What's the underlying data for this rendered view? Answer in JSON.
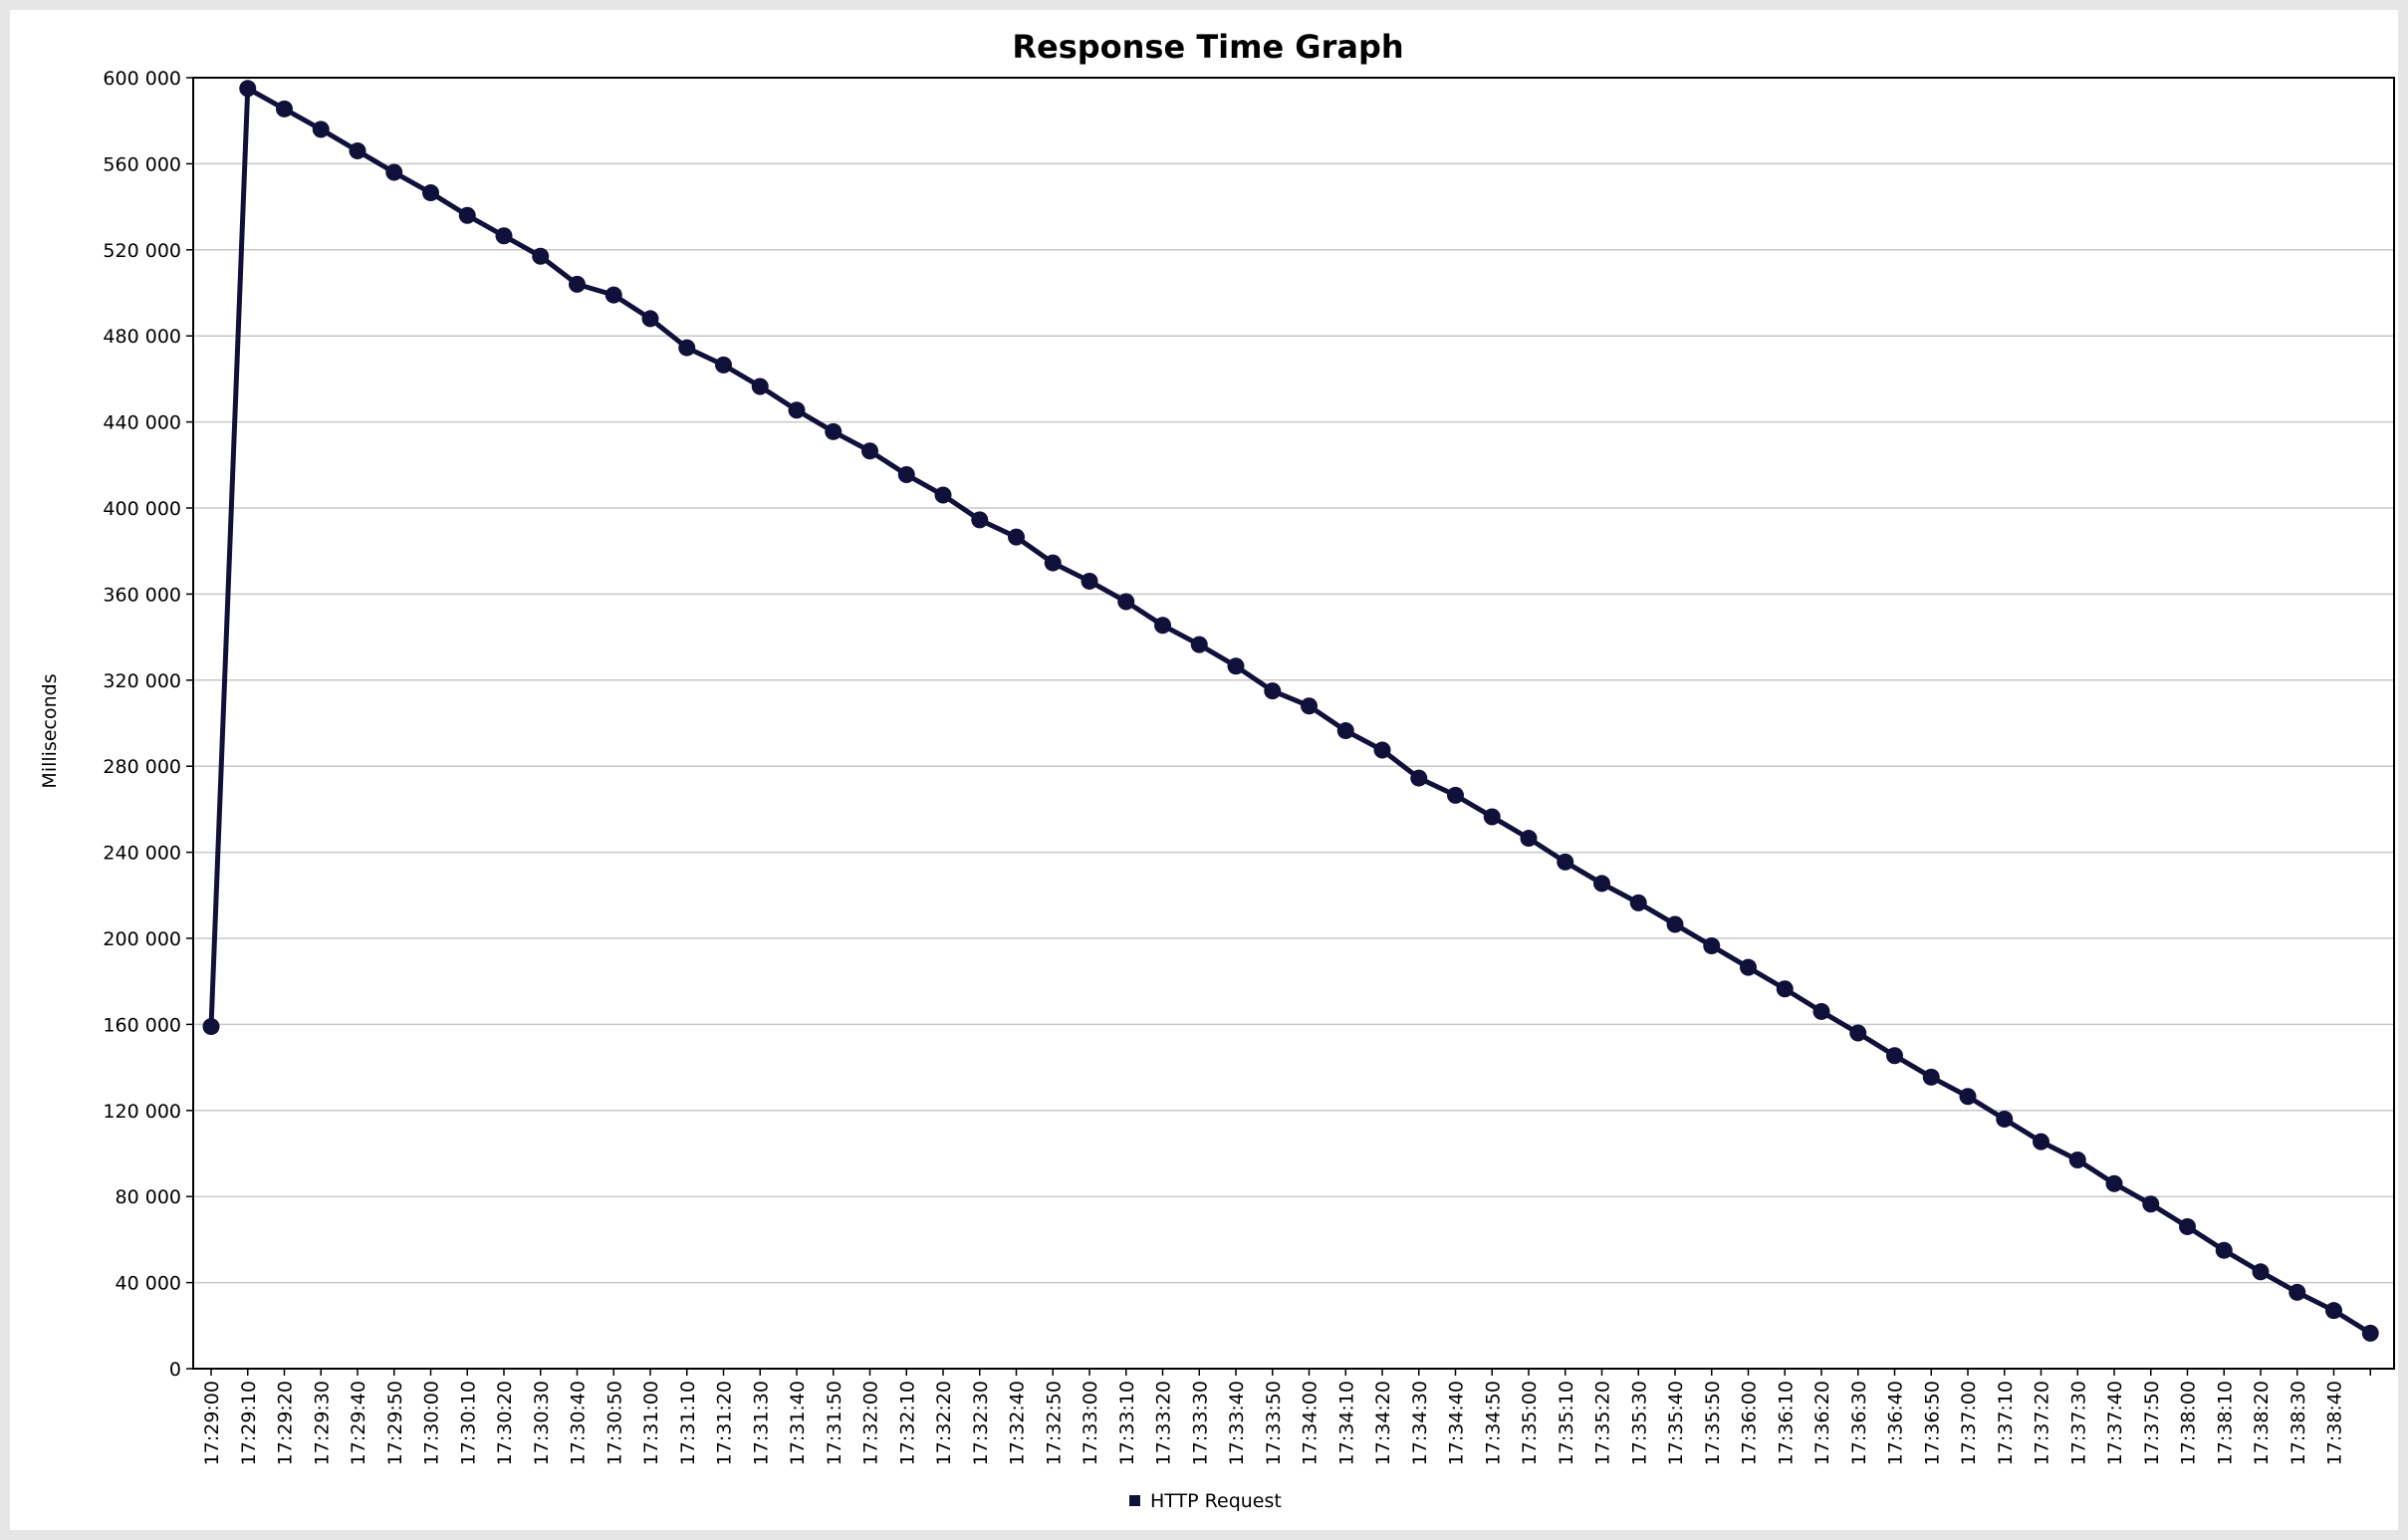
{
  "chart_data": {
    "type": "line",
    "title": "Response Time Graph",
    "xlabel": "",
    "ylabel": "Milliseconds",
    "ylim": [
      0,
      600000
    ],
    "y_ticks": [
      0,
      40000,
      80000,
      120000,
      160000,
      200000,
      240000,
      280000,
      320000,
      360000,
      400000,
      440000,
      480000,
      520000,
      560000,
      600000
    ],
    "y_tick_labels": [
      "0",
      "40 000",
      "80 000",
      "120 000",
      "160 000",
      "200 000",
      "240 000",
      "280 000",
      "320 000",
      "360 000",
      "400 000",
      "440 000",
      "480 000",
      "520 000",
      "560 000",
      "600 000"
    ],
    "x_tick_labels": [
      "17:29:00",
      "17:29:10",
      "17:29:20",
      "17:29:30",
      "17:29:40",
      "17:29:50",
      "17:30:00",
      "17:30:10",
      "17:30:20",
      "17:30:30",
      "17:30:40",
      "17:30:50",
      "17:31:00",
      "17:31:10",
      "17:31:20",
      "17:31:30",
      "17:31:40",
      "17:31:50",
      "17:32:00",
      "17:32:10",
      "17:32:20",
      "17:32:30",
      "17:32:40",
      "17:32:50",
      "17:33:00",
      "17:33:10",
      "17:33:20",
      "17:33:30",
      "17:33:40",
      "17:33:50",
      "17:34:00",
      "17:34:10",
      "17:34:20",
      "17:34:30",
      "17:34:40",
      "17:34:50",
      "17:35:00",
      "17:35:10",
      "17:35:20",
      "17:35:30",
      "17:35:40",
      "17:35:50",
      "17:36:00",
      "17:36:10",
      "17:36:20",
      "17:36:30",
      "17:36:40",
      "17:36:50",
      "17:37:00",
      "17:37:10",
      "17:37:20",
      "17:37:30",
      "17:37:40",
      "17:37:50",
      "17:38:00",
      "17:38:10",
      "17:38:20",
      "17:38:30",
      "17:38:40"
    ],
    "grid": true,
    "legend_position": "bottom-center",
    "series": [
      {
        "name": "HTTP Request",
        "color": "#10103a",
        "x": [
          "17:29:00",
          "17:29:10",
          "17:29:20",
          "17:29:30",
          "17:29:40",
          "17:29:50",
          "17:30:00",
          "17:30:10",
          "17:30:20",
          "17:30:30",
          "17:30:40",
          "17:30:50",
          "17:31:00",
          "17:31:10",
          "17:31:20",
          "17:31:30",
          "17:31:40",
          "17:31:50",
          "17:32:00",
          "17:32:10",
          "17:32:20",
          "17:32:30",
          "17:32:40",
          "17:32:50",
          "17:33:00",
          "17:33:10",
          "17:33:20",
          "17:33:30",
          "17:33:40",
          "17:33:50",
          "17:34:00",
          "17:34:10",
          "17:34:20",
          "17:34:30",
          "17:34:40",
          "17:34:50",
          "17:35:00",
          "17:35:10",
          "17:35:20",
          "17:35:30",
          "17:35:40",
          "17:35:50",
          "17:36:00",
          "17:36:10",
          "17:36:20",
          "17:36:30",
          "17:36:40",
          "17:36:50",
          "17:37:00",
          "17:37:10",
          "17:37:20",
          "17:37:30",
          "17:37:40",
          "17:37:50",
          "17:38:00",
          "17:38:10",
          "17:38:20",
          "17:38:30",
          "17:38:40",
          "17:38:50"
        ],
        "values": [
          159000,
          595000,
          585500,
          576000,
          566000,
          556000,
          546500,
          536000,
          526500,
          517000,
          504000,
          499000,
          488000,
          474500,
          466500,
          456500,
          445500,
          435500,
          426500,
          415500,
          406000,
          394500,
          386500,
          374500,
          366000,
          356500,
          345500,
          336500,
          326500,
          315000,
          308000,
          296500,
          287500,
          274500,
          266500,
          256500,
          246500,
          235500,
          225500,
          216500,
          206500,
          196500,
          186500,
          176500,
          166000,
          156000,
          145500,
          135500,
          126500,
          116000,
          105500,
          97000,
          86000,
          76500,
          66000,
          55000,
          45000,
          35500,
          27000,
          16500
        ]
      }
    ]
  }
}
